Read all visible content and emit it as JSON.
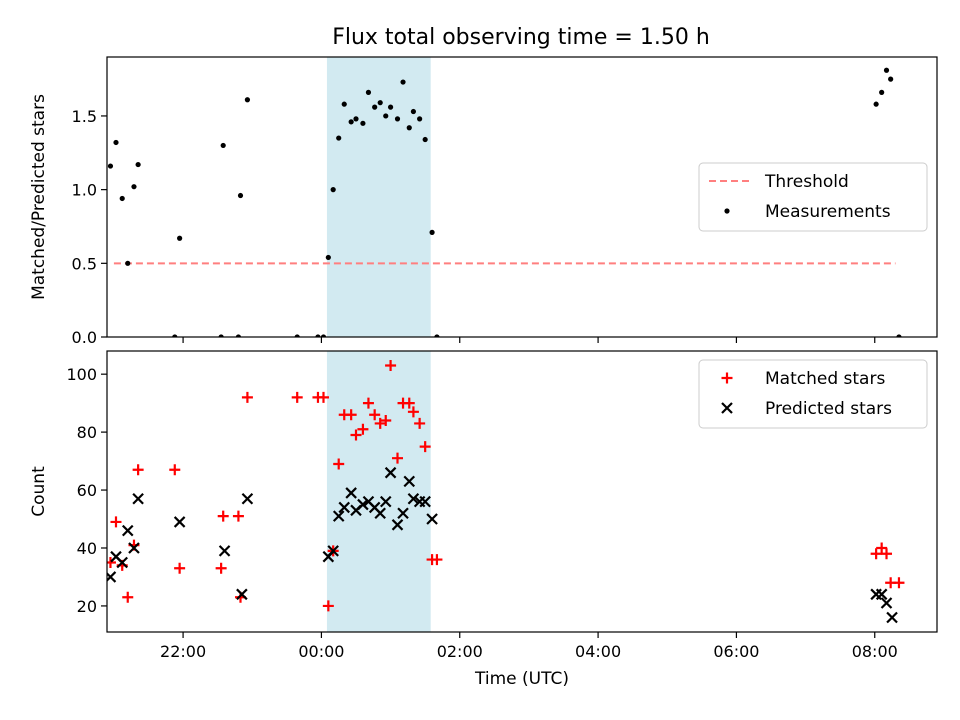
{
  "figure": {
    "title": "Flux total observing time = 1.50 h"
  },
  "chart_data": [
    {
      "type": "scatter",
      "ylabel": "Matched/Predicted stars",
      "xlabel": "",
      "xlim": [
        -3.1,
        8.9
      ],
      "ylim": [
        0,
        1.9
      ],
      "x_ticks": [
        {
          "v": -2,
          "label": "22:00"
        },
        {
          "v": 0,
          "label": "00:00"
        },
        {
          "v": 2,
          "label": "02:00"
        },
        {
          "v": 4,
          "label": "04:00"
        },
        {
          "v": 6,
          "label": "06:00"
        },
        {
          "v": 8,
          "label": "08:00"
        }
      ],
      "y_ticks": [
        {
          "v": 0.0,
          "label": "0.0"
        },
        {
          "v": 0.5,
          "label": "0.5"
        },
        {
          "v": 1.0,
          "label": "1.0"
        },
        {
          "v": 1.5,
          "label": "1.5"
        }
      ],
      "x_ticklabels_visible": false,
      "shaded_region": {
        "x0": 0.08,
        "x1": 1.58,
        "color": "#add8e6"
      },
      "legend_position": "center-right",
      "series": [
        {
          "name": "Threshold",
          "kind": "line",
          "style": "dashed",
          "color": "#ff7f7f",
          "x": [
            -3.0,
            8.3
          ],
          "y": [
            0.5,
            0.5
          ]
        },
        {
          "name": "Measurements",
          "kind": "scatter",
          "marker": "dot",
          "color": "#000000",
          "x": [
            -3.05,
            -2.97,
            -2.88,
            -2.8,
            -2.71,
            -2.65,
            -2.12,
            -2.05,
            -1.45,
            -1.42,
            -1.2,
            -1.17,
            -1.07,
            -0.35,
            -0.05,
            0.03,
            0.1,
            0.17,
            0.25,
            0.33,
            0.43,
            0.5,
            0.6,
            0.68,
            0.77,
            0.85,
            0.93,
            1.0,
            1.1,
            1.18,
            1.27,
            1.33,
            1.42,
            1.5,
            1.6,
            1.67,
            8.02,
            8.1,
            8.17,
            8.23,
            8.35
          ],
          "y": [
            1.16,
            1.32,
            0.94,
            0.5,
            1.02,
            1.17,
            0.0,
            0.67,
            0.0,
            1.3,
            0.0,
            0.96,
            1.61,
            0.0,
            0.0,
            0.0,
            0.54,
            1.0,
            1.35,
            1.58,
            1.46,
            1.48,
            1.45,
            1.66,
            1.56,
            1.59,
            1.5,
            1.56,
            1.48,
            1.73,
            1.42,
            1.53,
            1.48,
            1.34,
            0.71,
            0.0,
            1.58,
            1.66,
            1.81,
            1.75,
            0.0
          ]
        }
      ]
    },
    {
      "type": "scatter",
      "xlabel": "Time (UTC)",
      "ylabel": "Count",
      "xlim": [
        -3.1,
        8.9
      ],
      "ylim": [
        11,
        108
      ],
      "x_ticks": [
        {
          "v": -2,
          "label": "22:00"
        },
        {
          "v": 0,
          "label": "00:00"
        },
        {
          "v": 2,
          "label": "02:00"
        },
        {
          "v": 4,
          "label": "04:00"
        },
        {
          "v": 6,
          "label": "06:00"
        },
        {
          "v": 8,
          "label": "08:00"
        }
      ],
      "y_ticks": [
        {
          "v": 20,
          "label": "20"
        },
        {
          "v": 40,
          "label": "40"
        },
        {
          "v": 60,
          "label": "60"
        },
        {
          "v": 80,
          "label": "80"
        },
        {
          "v": 100,
          "label": "100"
        }
      ],
      "shaded_region": {
        "x0": 0.08,
        "x1": 1.58,
        "color": "#add8e6"
      },
      "legend_position": "upper-right",
      "series": [
        {
          "name": "Matched stars",
          "kind": "scatter",
          "marker": "plus",
          "color": "#ff0000",
          "x": [
            -3.05,
            -2.97,
            -2.88,
            -2.8,
            -2.71,
            -2.65,
            -2.12,
            -2.05,
            -1.45,
            -1.42,
            -1.2,
            -1.17,
            -1.07,
            -0.35,
            -0.05,
            0.03,
            0.1,
            0.17,
            0.25,
            0.33,
            0.43,
            0.5,
            0.6,
            0.68,
            0.77,
            0.85,
            0.93,
            1.0,
            1.1,
            1.18,
            1.27,
            1.33,
            1.42,
            1.5,
            1.6,
            1.67,
            8.02,
            8.1,
            8.17,
            8.23,
            8.35
          ],
          "y": [
            35,
            49,
            34,
            23,
            41,
            67,
            67,
            33,
            33,
            51,
            51,
            23,
            92,
            92,
            92,
            92,
            20,
            39,
            69,
            86,
            86,
            79,
            81,
            90,
            86,
            83,
            84,
            103,
            71,
            90,
            90,
            87,
            83,
            75,
            36,
            36,
            38,
            40,
            38,
            28,
            28
          ]
        },
        {
          "name": "Predicted stars",
          "kind": "scatter",
          "marker": "x",
          "color": "#000000",
          "x": [
            -3.05,
            -2.97,
            -2.88,
            -2.8,
            -2.71,
            -2.65,
            -2.05,
            -1.4,
            -1.15,
            -1.07,
            0.1,
            0.17,
            0.25,
            0.33,
            0.43,
            0.5,
            0.6,
            0.68,
            0.77,
            0.85,
            0.93,
            1.0,
            1.1,
            1.18,
            1.27,
            1.33,
            1.42,
            1.5,
            1.6,
            8.02,
            8.1,
            8.17,
            8.25
          ],
          "y": [
            30,
            37,
            35,
            46,
            40,
            57,
            49,
            39,
            24,
            57,
            37,
            39,
            51,
            54,
            59,
            53,
            55,
            56,
            54,
            52,
            56,
            66,
            48,
            52,
            63,
            57,
            56,
            56,
            50,
            24,
            24,
            21,
            16
          ]
        }
      ]
    }
  ]
}
